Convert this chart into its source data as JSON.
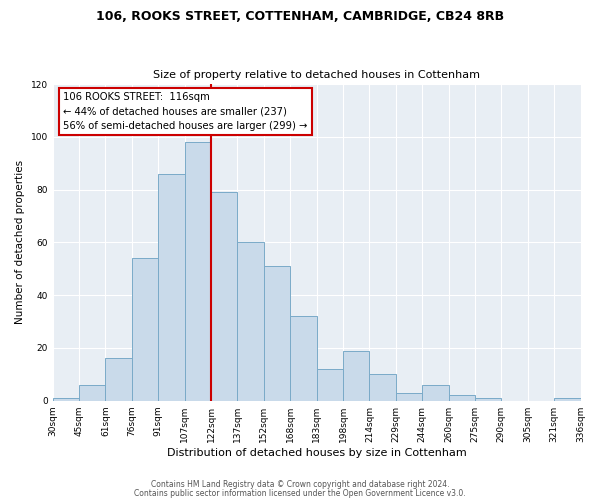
{
  "title1": "106, ROOKS STREET, COTTENHAM, CAMBRIDGE, CB24 8RB",
  "title2": "Size of property relative to detached houses in Cottenham",
  "xlabel": "Distribution of detached houses by size in Cottenham",
  "ylabel": "Number of detached properties",
  "bin_labels": [
    "30sqm",
    "45sqm",
    "61sqm",
    "76sqm",
    "91sqm",
    "107sqm",
    "122sqm",
    "137sqm",
    "152sqm",
    "168sqm",
    "183sqm",
    "198sqm",
    "214sqm",
    "229sqm",
    "244sqm",
    "260sqm",
    "275sqm",
    "290sqm",
    "305sqm",
    "321sqm",
    "336sqm"
  ],
  "bar_values": [
    1,
    6,
    16,
    54,
    86,
    98,
    79,
    60,
    51,
    32,
    12,
    19,
    10,
    3,
    6,
    2,
    1,
    0,
    0,
    1
  ],
  "bar_color": "#c9daea",
  "bar_edge_color": "#7aaac8",
  "vline_color": "#cc0000",
  "vline_bin_index": 6,
  "annotation_box_color": "#ffffff",
  "annotation_box_edge_color": "#cc0000",
  "annotation_line1": "106 ROOKS STREET:  116sqm",
  "annotation_line2": "← 44% of detached houses are smaller (237)",
  "annotation_line3": "56% of semi-detached houses are larger (299) →",
  "ylim": [
    0,
    120
  ],
  "bg_color": "#e8eef4",
  "grid_color": "#ffffff",
  "footer1": "Contains HM Land Registry data © Crown copyright and database right 2024.",
  "footer2": "Contains public sector information licensed under the Open Government Licence v3.0."
}
